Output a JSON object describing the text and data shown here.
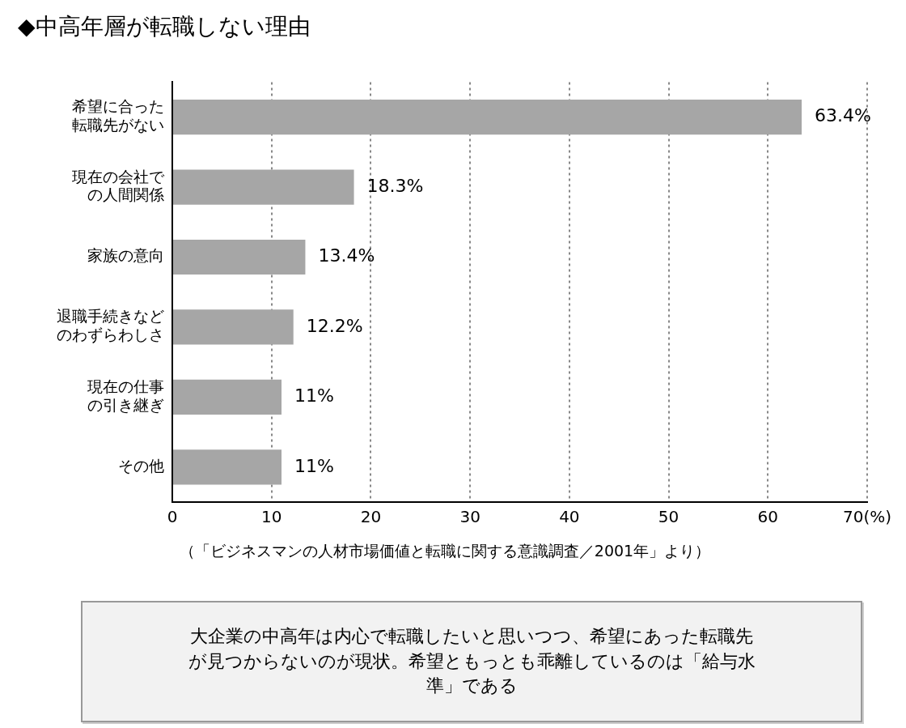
{
  "chart_data": {
    "type": "bar",
    "orientation": "horizontal",
    "title": "◆中高年層が転職しない理由",
    "categories": [
      "希望に合った転職先がない",
      "現在の会社での人間関係",
      "家族の意向",
      "退職手続きなどのわずらわしさ",
      "現在の仕事の引き継ぎ",
      "その他"
    ],
    "values": [
      63.4,
      18.3,
      13.4,
      12.2,
      11,
      11
    ],
    "value_labels": [
      "63.4%",
      "18.3%",
      "13.4%",
      "12.2%",
      "11%",
      "11%"
    ],
    "color": "#a6a6a6",
    "xlim": [
      0,
      70
    ],
    "xticks": [
      0,
      10,
      20,
      30,
      40,
      50,
      60,
      {
        "value": 70,
        "label": "70(%)"
      }
    ],
    "grid": "x",
    "legend": false,
    "annotations": [
      "（「ビジネスマンの人材市場価値と転職に関する意識調査／2001年」より）",
      "大企業の中高年は内心で転職したいと思いつつ、希望にあった転職先が見つからないのが現状。希望ともっとも乖離しているのは「給与水準」である"
    ]
  }
}
